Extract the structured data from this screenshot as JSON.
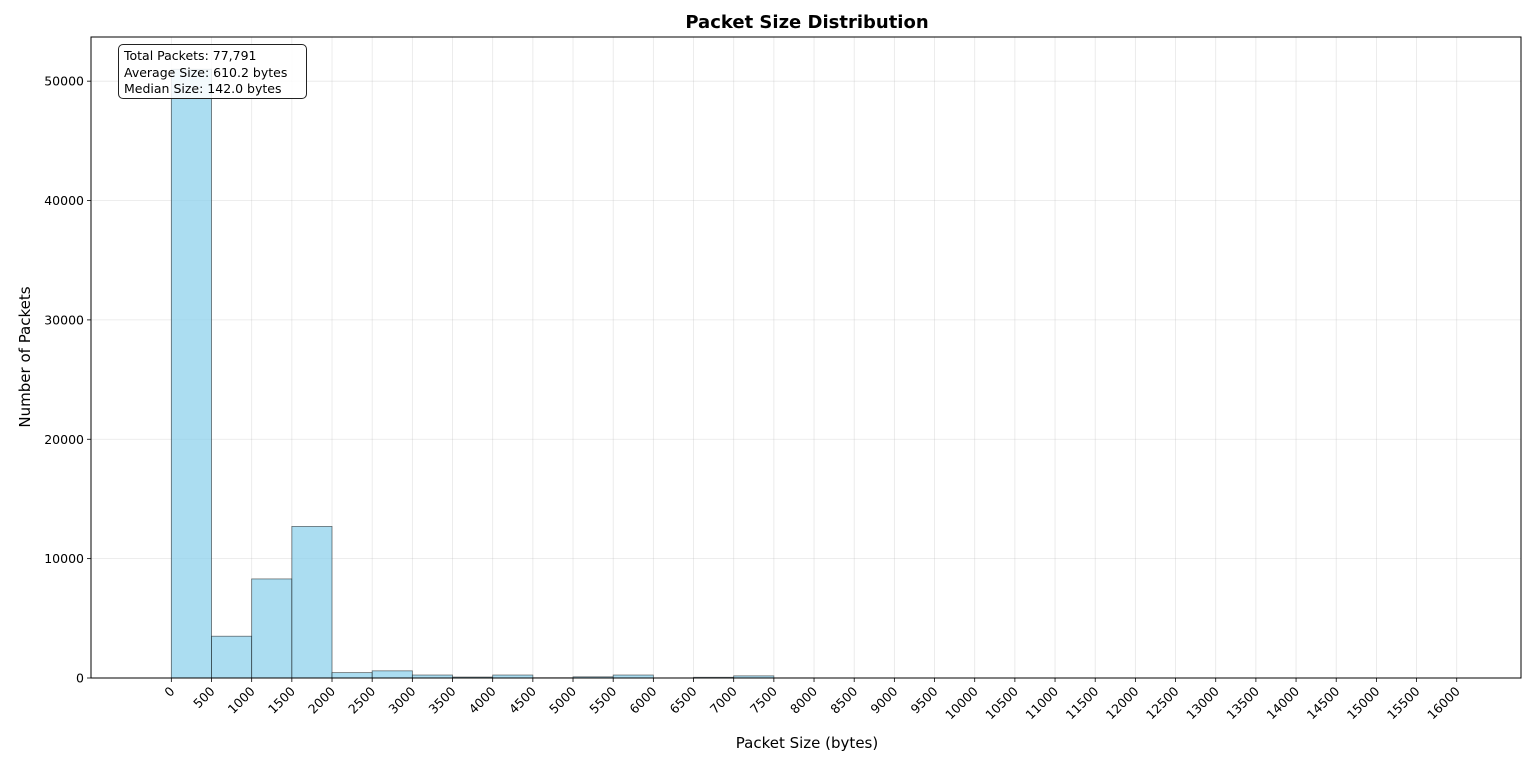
{
  "chart_data": {
    "type": "bar",
    "title": "Packet Size Distribution",
    "xlabel": "Packet Size (bytes)",
    "ylabel": "Number of Packets",
    "xlim": [
      -1000,
      16800
    ],
    "ylim": [
      0,
      53700
    ],
    "xticks": [
      0,
      500,
      1000,
      1500,
      2000,
      2500,
      3000,
      3500,
      4000,
      4500,
      5000,
      5500,
      6000,
      6500,
      7000,
      7500,
      8000,
      8500,
      9000,
      9500,
      10000,
      10500,
      11000,
      11500,
      12000,
      12500,
      13000,
      13500,
      14000,
      14500,
      15000,
      15500,
      16000
    ],
    "yticks": [
      0,
      10000,
      20000,
      30000,
      40000,
      50000
    ],
    "bin_width": 500,
    "bins": [
      {
        "start": 0,
        "value": 51000
      },
      {
        "start": 500,
        "value": 3500
      },
      {
        "start": 1000,
        "value": 8300
      },
      {
        "start": 1500,
        "value": 12700
      },
      {
        "start": 2000,
        "value": 450
      },
      {
        "start": 2500,
        "value": 600
      },
      {
        "start": 3000,
        "value": 250
      },
      {
        "start": 3500,
        "value": 80
      },
      {
        "start": 4000,
        "value": 250
      },
      {
        "start": 4500,
        "value": 20
      },
      {
        "start": 5000,
        "value": 100
      },
      {
        "start": 5500,
        "value": 250
      },
      {
        "start": 6000,
        "value": 10
      },
      {
        "start": 6500,
        "value": 60
      },
      {
        "start": 7000,
        "value": 180
      },
      {
        "start": 7500,
        "value": 10
      },
      {
        "start": 8000,
        "value": 5
      },
      {
        "start": 8500,
        "value": 5
      },
      {
        "start": 9000,
        "value": 5
      },
      {
        "start": 9500,
        "value": 5
      },
      {
        "start": 10000,
        "value": 5
      },
      {
        "start": 10500,
        "value": 5
      },
      {
        "start": 11000,
        "value": 5
      },
      {
        "start": 11500,
        "value": 5
      },
      {
        "start": 12000,
        "value": 5
      },
      {
        "start": 12500,
        "value": 5
      },
      {
        "start": 13000,
        "value": 5
      },
      {
        "start": 13500,
        "value": 5
      },
      {
        "start": 14000,
        "value": 5
      },
      {
        "start": 14500,
        "value": 5
      },
      {
        "start": 15000,
        "value": 5
      },
      {
        "start": 15500,
        "value": 5
      }
    ],
    "grid": true,
    "colors": {
      "bar_fill": "#87ceeb",
      "bar_edge": "#000000"
    },
    "annotation": {
      "placement": "top-left",
      "lines": [
        "Total Packets: 77,791",
        "Average Size: 610.2 bytes",
        "Median Size: 142.0 bytes"
      ]
    }
  }
}
